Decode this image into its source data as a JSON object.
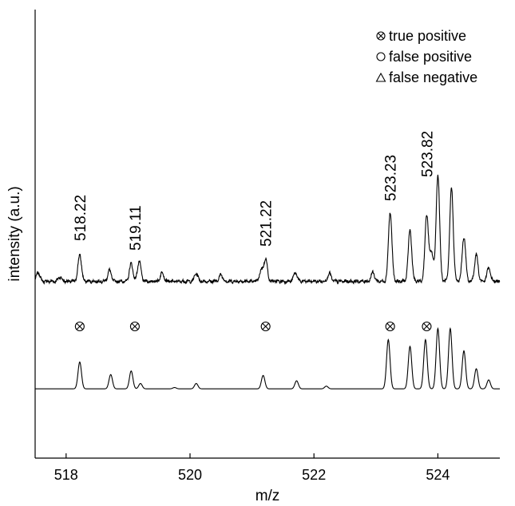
{
  "chart_data": {
    "type": "line",
    "xlabel": "m/z",
    "ylabel": "intensity (a.u.)",
    "xlim": [
      517.5,
      525.0
    ],
    "ylim": [
      0,
      1
    ],
    "xticks": [
      518,
      520,
      522,
      524
    ],
    "xtick_labels": [
      "518",
      "520",
      "522",
      "524"
    ],
    "grid": false,
    "legend_position": "top-right",
    "legend": [
      {
        "symbol": "circle-x",
        "glyph": "⊗",
        "label": "true positive"
      },
      {
        "symbol": "circle",
        "glyph": "○",
        "label": "false positive"
      },
      {
        "symbol": "triangle",
        "glyph": "△",
        "label": "false negative"
      }
    ],
    "series": [
      {
        "trace": "upper",
        "baseline": 0.39,
        "noise": true,
        "peaks": [
          [
            517.55,
            0.02
          ],
          [
            517.9,
            0.01
          ],
          [
            518.22,
            0.06
          ],
          [
            518.7,
            0.025
          ],
          [
            519.05,
            0.04
          ],
          [
            519.18,
            0.045
          ],
          [
            519.55,
            0.02
          ],
          [
            520.1,
            0.018
          ],
          [
            520.5,
            0.015
          ],
          [
            521.15,
            0.025
          ],
          [
            521.22,
            0.05
          ],
          [
            521.7,
            0.02
          ],
          [
            522.25,
            0.018
          ],
          [
            522.95,
            0.02
          ],
          [
            523.23,
            0.155
          ],
          [
            523.55,
            0.115
          ],
          [
            523.82,
            0.15
          ],
          [
            523.9,
            0.065
          ],
          [
            524.0,
            0.24
          ],
          [
            524.22,
            0.21
          ],
          [
            524.42,
            0.1
          ],
          [
            524.62,
            0.06
          ],
          [
            524.82,
            0.03
          ]
        ]
      },
      {
        "trace": "lower",
        "baseline": 0.155,
        "noise": false,
        "peaks": [
          [
            518.22,
            0.06
          ],
          [
            518.72,
            0.032
          ],
          [
            519.05,
            0.04
          ],
          [
            519.2,
            0.012
          ],
          [
            519.75,
            0.003
          ],
          [
            520.1,
            0.012
          ],
          [
            521.18,
            0.03
          ],
          [
            521.72,
            0.018
          ],
          [
            522.2,
            0.006
          ],
          [
            523.2,
            0.11
          ],
          [
            523.55,
            0.095
          ],
          [
            523.8,
            0.11
          ],
          [
            524.0,
            0.135
          ],
          [
            524.2,
            0.135
          ],
          [
            524.42,
            0.085
          ],
          [
            524.62,
            0.045
          ],
          [
            524.82,
            0.02
          ]
        ]
      }
    ],
    "annotations": [
      {
        "label": "518.22",
        "x": 518.22,
        "marker": "circle-x"
      },
      {
        "label": "519.11",
        "x": 519.11,
        "marker": "circle-x"
      },
      {
        "label": "521.22",
        "x": 521.22,
        "marker": "circle-x"
      },
      {
        "label": "523.23",
        "x": 523.23,
        "marker": "circle-x"
      },
      {
        "label": "523.82",
        "x": 523.82,
        "marker": "circle-x"
      }
    ]
  }
}
